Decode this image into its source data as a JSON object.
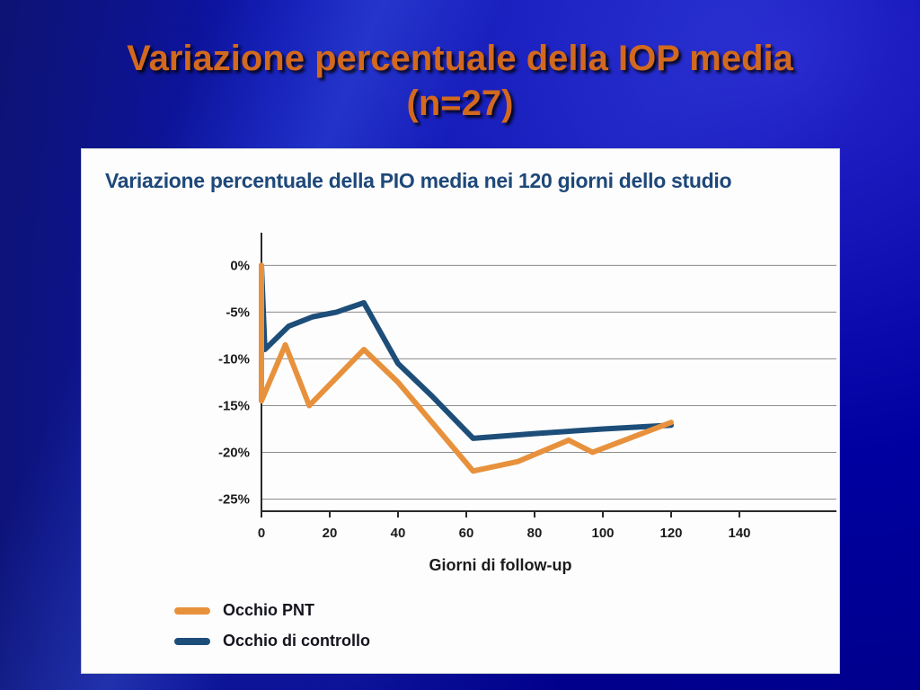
{
  "slide": {
    "title_line1": "Variazione percentuale della IOP media",
    "title_line2": "(n=27)",
    "title_color": "#d2691e",
    "background_color": "#0000a0"
  },
  "chart_data": {
    "type": "line",
    "title": "Variazione percentuale della PIO media nei 120 giorni dello studio",
    "xlabel": "Giorni di follow-up",
    "ylabel": "",
    "grid": true,
    "legend_position": "bottom-left",
    "xlim": [
      0,
      140
    ],
    "ylim": [
      -25,
      0
    ],
    "x_ticks": [
      0,
      20,
      40,
      60,
      80,
      100,
      120,
      140
    ],
    "y_ticks": [
      "0%",
      "-5%",
      "-10%",
      "-15%",
      "-20%",
      "-25%"
    ],
    "y_tick_values": [
      0,
      -5,
      -10,
      -15,
      -20,
      -25
    ],
    "series": [
      {
        "name": "Occhio di controllo",
        "color": "#1d4e79",
        "x": [
          0,
          1,
          8,
          15,
          22,
          30,
          40,
          50,
          62,
          80,
          100,
          120
        ],
        "y": [
          0,
          -9,
          -6.5,
          -5.5,
          -5,
          -4,
          -10.5,
          -14,
          -18.5,
          -18,
          -17.5,
          -17.1
        ]
      },
      {
        "name": "Occhio PNT",
        "color": "#e8913c",
        "x": [
          0,
          0,
          7,
          14,
          30,
          40,
          62,
          75,
          90,
          97,
          120
        ],
        "y": [
          0,
          -14.5,
          -8.5,
          -15,
          -9,
          -12.5,
          -22,
          -21,
          -18.7,
          -20,
          -16.8
        ]
      }
    ],
    "legend": [
      {
        "label": "Occhio PNT",
        "color": "#e8913c"
      },
      {
        "label": "Occhio di controllo",
        "color": "#1d4e79"
      }
    ]
  }
}
